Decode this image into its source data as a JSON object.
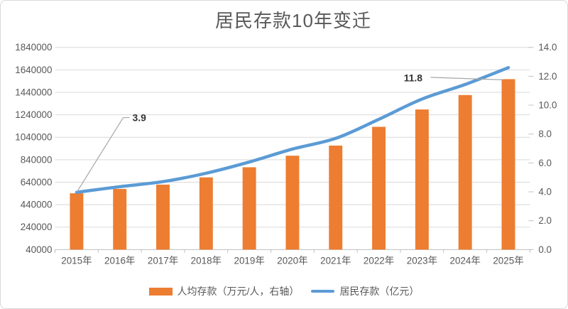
{
  "chart_data": {
    "type": "combo-bar-line",
    "title": "居民存款10年变迁",
    "categories": [
      "2015年",
      "2016年",
      "2017年",
      "2018年",
      "2019年",
      "2020年",
      "2021年",
      "2022年",
      "2023年",
      "2024年",
      "2025年"
    ],
    "series": [
      {
        "name": "人均存款（万元/人，右轴）",
        "type": "bar",
        "axis": "right",
        "color": "#ED7D31",
        "values": [
          3.9,
          4.2,
          4.5,
          5.0,
          5.7,
          6.5,
          7.2,
          8.5,
          9.7,
          10.7,
          11.8
        ]
      },
      {
        "name": "居民存款（亿元）",
        "type": "line",
        "axis": "left",
        "color": "#5B9BD5",
        "values": [
          550000,
          600000,
          645000,
          720000,
          820000,
          935000,
          1030000,
          1200000,
          1380000,
          1510000,
          1660000
        ]
      }
    ],
    "left_axis": {
      "min": 40000,
      "max": 1840000,
      "step": 200000,
      "ticks": [
        "40000",
        "240000",
        "440000",
        "640000",
        "840000",
        "1040000",
        "1240000",
        "1440000",
        "1640000",
        "1840000"
      ]
    },
    "right_axis": {
      "min": 0,
      "max": 14,
      "step": 2,
      "ticks": [
        "0.0",
        "2.0",
        "4.0",
        "6.0",
        "8.0",
        "10.0",
        "12.0",
        "14.0"
      ]
    },
    "annotations": [
      {
        "text": "3.9",
        "series_index": 0,
        "point_index": 0
      },
      {
        "text": "11.8",
        "series_index": 0,
        "point_index": 10
      }
    ],
    "legend": {
      "position": "bottom",
      "items": [
        {
          "label": "人均存款（万元/人，右轴）",
          "swatch": "bar",
          "color": "#ED7D31"
        },
        {
          "label": "居民存款（亿元）",
          "swatch": "line",
          "color": "#5B9BD5"
        }
      ]
    },
    "grid": true,
    "colors": {
      "bar": "#ED7D31",
      "line": "#5B9BD5",
      "grid": "#D9D9D9",
      "axis": "#BFBFBF",
      "text": "#595959",
      "annotation_text": "#333333",
      "leader": "#A6A6A6"
    }
  }
}
